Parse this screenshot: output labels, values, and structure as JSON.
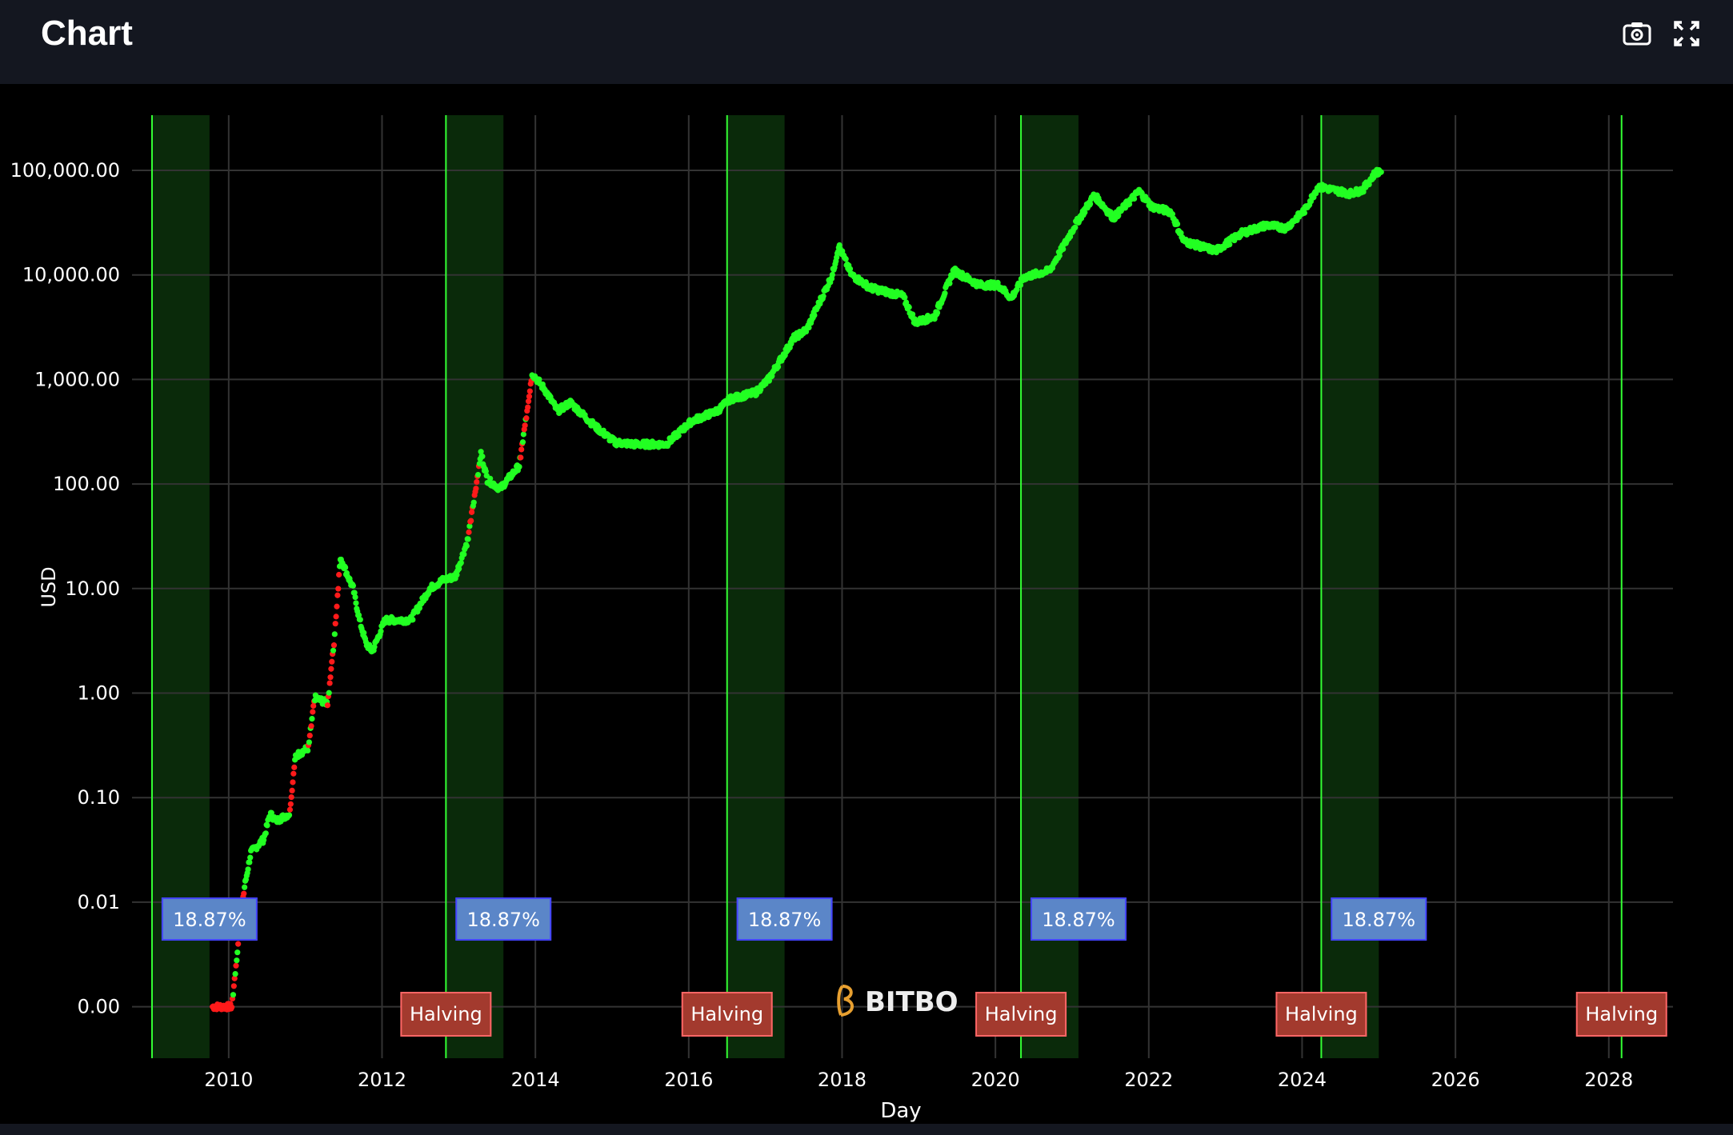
{
  "header": {
    "title": "Chart",
    "icons": [
      "camera-icon",
      "fullscreen-icon"
    ]
  },
  "watermark": {
    "text": "BITBO"
  },
  "colors": {
    "background": "#000000",
    "grid": "#333333",
    "up": "#22ff22",
    "down_fast": "#ff1a1a",
    "shade": "#0a2a0a",
    "halving_line": "#33ff33",
    "pct_box": "#5b86c8",
    "pct_border": "#4444ff",
    "halving_box": "#a33a2e",
    "halving_border": "#ff6666"
  },
  "chart_data": {
    "type": "scatter",
    "xlabel": "Day",
    "ylabel": "USD",
    "yscale": "log",
    "xlim": [
      "2009-01",
      "2028-10"
    ],
    "ylim": [
      0.0003,
      300000
    ],
    "grid": true,
    "x_ticks": [
      "2010",
      "2012",
      "2014",
      "2016",
      "2018",
      "2020",
      "2022",
      "2024",
      "2026",
      "2028"
    ],
    "y_ticks": [
      {
        "value": 100000,
        "label": "100,000.00"
      },
      {
        "value": 10000,
        "label": "10,000.00"
      },
      {
        "value": 1000,
        "label": "1,000.00"
      },
      {
        "value": 100,
        "label": "100.00"
      },
      {
        "value": 10,
        "label": "10.00"
      },
      {
        "value": 1,
        "label": "1.00"
      },
      {
        "value": 0.1,
        "label": "0.10"
      },
      {
        "value": 0.01,
        "label": "0.01"
      },
      {
        "value": 0.001,
        "label": "0.00"
      }
    ],
    "events": [
      {
        "line": "2009-01",
        "shade_end": "2009-10",
        "pct_label": "18.87%",
        "halving_label": ""
      },
      {
        "line": "2012-11",
        "shade_end": "2013-08",
        "pct_label": "18.87%",
        "halving_label": "Halving"
      },
      {
        "line": "2016-07",
        "shade_end": "2017-04",
        "pct_label": "18.87%",
        "halving_label": "Halving"
      },
      {
        "line": "2020-05",
        "shade_end": "2021-02",
        "pct_label": "18.87%",
        "halving_label": "Halving"
      },
      {
        "line": "2024-04",
        "shade_end": "2025-01",
        "pct_label": "18.87%",
        "halving_label": "Halving"
      },
      {
        "line": "2028-03",
        "shade_end": "",
        "pct_label": "",
        "halving_label": "Halving"
      }
    ],
    "series": [
      {
        "points": [
          [
            "2009-10",
            0.001
          ],
          [
            "2010-01",
            0.001
          ],
          [
            "2010-02",
            0.004
          ],
          [
            "2010-03",
            0.014
          ],
          [
            "2010-04",
            0.03
          ],
          [
            "2010-06",
            0.04
          ],
          [
            "2010-07",
            0.07
          ],
          [
            "2010-08",
            0.06
          ],
          [
            "2010-10",
            0.07
          ],
          [
            "2010-11",
            0.25
          ],
          [
            "2011-01",
            0.3
          ],
          [
            "2011-02",
            0.9
          ],
          [
            "2011-04",
            0.8
          ],
          [
            "2011-05",
            3
          ],
          [
            "2011-06",
            20
          ],
          [
            "2011-07",
            14
          ],
          [
            "2011-08",
            10
          ],
          [
            "2011-09",
            5
          ],
          [
            "2011-10",
            3
          ],
          [
            "2011-11",
            2.5
          ],
          [
            "2012-01",
            5
          ],
          [
            "2012-03",
            5
          ],
          [
            "2012-05",
            5
          ],
          [
            "2012-08",
            10
          ],
          [
            "2012-10",
            12
          ],
          [
            "2012-12",
            13
          ],
          [
            "2013-02",
            30
          ],
          [
            "2013-04",
            200
          ],
          [
            "2013-05",
            110
          ],
          [
            "2013-07",
            90
          ],
          [
            "2013-10",
            150
          ],
          [
            "2013-11",
            400
          ],
          [
            "2013-12",
            1150
          ],
          [
            "2014-02",
            800
          ],
          [
            "2014-04",
            500
          ],
          [
            "2014-06",
            600
          ],
          [
            "2014-10",
            350
          ],
          [
            "2015-01",
            250
          ],
          [
            "2015-04",
            240
          ],
          [
            "2015-09",
            240
          ],
          [
            "2016-01",
            400
          ],
          [
            "2016-05",
            500
          ],
          [
            "2016-07",
            650
          ],
          [
            "2016-11",
            750
          ],
          [
            "2017-01",
            1000
          ],
          [
            "2017-05",
            2500
          ],
          [
            "2017-07",
            3000
          ],
          [
            "2017-11",
            10000
          ],
          [
            "2017-12",
            19000
          ],
          [
            "2018-02",
            10000
          ],
          [
            "2018-05",
            7500
          ],
          [
            "2018-10",
            6300
          ],
          [
            "2018-12",
            3500
          ],
          [
            "2019-03",
            4000
          ],
          [
            "2019-06",
            11000
          ],
          [
            "2019-10",
            8000
          ],
          [
            "2020-01",
            8000
          ],
          [
            "2020-03",
            6000
          ],
          [
            "2020-05",
            9500
          ],
          [
            "2020-09",
            11000
          ],
          [
            "2020-11",
            18000
          ],
          [
            "2021-01",
            30000
          ],
          [
            "2021-04",
            58000
          ],
          [
            "2021-07",
            35000
          ],
          [
            "2021-11",
            63000
          ],
          [
            "2022-01",
            45000
          ],
          [
            "2022-04",
            40000
          ],
          [
            "2022-06",
            21000
          ],
          [
            "2022-11",
            17000
          ],
          [
            "2023-03",
            25000
          ],
          [
            "2023-07",
            30000
          ],
          [
            "2023-10",
            28000
          ],
          [
            "2024-01",
            42000
          ],
          [
            "2024-03",
            70000
          ],
          [
            "2024-08",
            60000
          ],
          [
            "2024-10",
            65000
          ],
          [
            "2024-12",
            95000
          ],
          [
            "2025-01",
            100000
          ]
        ]
      }
    ]
  }
}
